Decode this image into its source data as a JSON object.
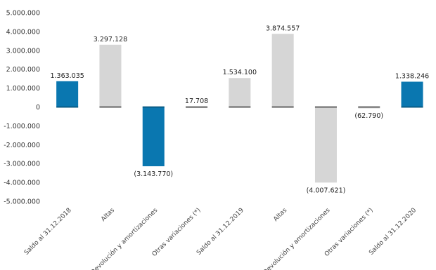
{
  "chart_data": {
    "type": "bar",
    "subtype": "waterfall",
    "categories": [
      "Saldo al 31.12.2018",
      "Altas",
      "Devolución y amortizaciones",
      "Otras variaciones (*)",
      "Saldo al 31.12.2019",
      "Altas",
      "Devolución y amortizaciones",
      "Otras variaciones (*)",
      "Saldo al 31.12.2020"
    ],
    "values": [
      1363035,
      3297128,
      -3143770,
      17708,
      1534100,
      3874557,
      -4007621,
      -62790,
      1338246
    ],
    "data_labels": [
      "1.363.035",
      "3.297.128",
      "(3.143.770)",
      "17.708",
      "1.534.100",
      "3.874.557",
      "(4.007.621)",
      "(62.790)",
      "1.338.246"
    ],
    "bar_colors": [
      "#0a77b0",
      "#d6d6d6",
      "#0a77b0",
      "#d6d6d6",
      "#d6d6d6",
      "#d6d6d6",
      "#d6d6d6",
      "#d6d6d6",
      "#0a77b0"
    ],
    "y_ticks": [
      {
        "value": 5000000,
        "label": "5.000.000"
      },
      {
        "value": 4000000,
        "label": "4.000.000"
      },
      {
        "value": 3000000,
        "label": "3.000.000"
      },
      {
        "value": 2000000,
        "label": "2.000.000"
      },
      {
        "value": 1000000,
        "label": "1.000.000"
      },
      {
        "value": 0,
        "label": "0"
      },
      {
        "value": -1000000,
        "label": "-1.000.000"
      },
      {
        "value": -2000000,
        "label": "-2.000.000"
      },
      {
        "value": -3000000,
        "label": "-3.000.000"
      },
      {
        "value": -4000000,
        "label": "-4.000.000"
      },
      {
        "value": -5000000,
        "label": "-5.000.000"
      }
    ],
    "ylim": [
      -5000000,
      5000000
    ],
    "grid": false,
    "title": "",
    "xlabel": "",
    "ylabel": ""
  }
}
